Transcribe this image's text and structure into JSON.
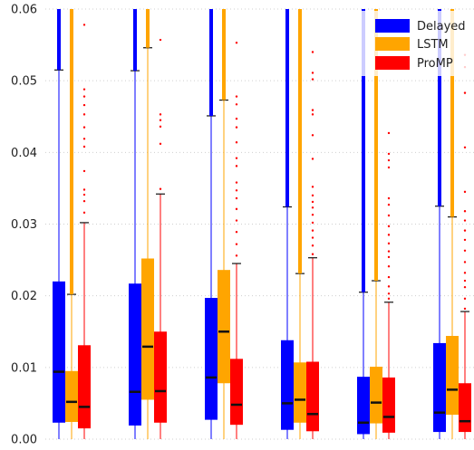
{
  "chart_data": {
    "type": "boxplot",
    "title": "",
    "xlabel": "",
    "ylabel": "",
    "ylim": [
      0,
      0.06
    ],
    "yticks": [
      "0.00",
      "0.01",
      "0.02",
      "0.03",
      "0.04",
      "0.05",
      "0.06"
    ],
    "grid": "horizontal dotted",
    "legend_position": "top-right",
    "groups": 6,
    "series": [
      {
        "name": "Delayed",
        "color": "#0000ff",
        "boxes": [
          {
            "whislo": 0.0,
            "q1": 0.0023,
            "med": 0.0094,
            "q3": 0.022,
            "whishi": 0.0515,
            "top_whisker_clipped": true
          },
          {
            "whislo": 0.0,
            "q1": 0.0019,
            "med": 0.0066,
            "q3": 0.0217,
            "whishi": 0.0514,
            "top_whisker_clipped": true
          },
          {
            "whislo": 0.0,
            "q1": 0.0027,
            "med": 0.0086,
            "q3": 0.0197,
            "whishi": 0.0451,
            "top_whisker_clipped": true
          },
          {
            "whislo": 0.0,
            "q1": 0.0013,
            "med": 0.005,
            "q3": 0.0138,
            "whishi": 0.0324,
            "top_whisker_clipped": true
          },
          {
            "whislo": 0.0,
            "q1": 0.0007,
            "med": 0.0023,
            "q3": 0.0087,
            "whishi": 0.0205,
            "top_whisker_clipped": true
          },
          {
            "whislo": 0.0,
            "q1": 0.001,
            "med": 0.0037,
            "q3": 0.0134,
            "whishi": 0.0325,
            "top_whisker_clipped": true
          }
        ]
      },
      {
        "name": "LSTM",
        "color": "#ffa500",
        "boxes": [
          {
            "whislo": 0.0,
            "q1": 0.0024,
            "med": 0.0052,
            "q3": 0.0095,
            "whishi": 0.0202,
            "top_whisker_clipped": true
          },
          {
            "whislo": 0.0,
            "q1": 0.0055,
            "med": 0.0129,
            "q3": 0.0252,
            "whishi": 0.0546,
            "top_whisker_clipped": true
          },
          {
            "whislo": 0.0,
            "q1": 0.0078,
            "med": 0.015,
            "q3": 0.0236,
            "whishi": 0.0473,
            "top_whisker_clipped": true
          },
          {
            "whislo": 0.0,
            "q1": 0.0023,
            "med": 0.0055,
            "q3": 0.0107,
            "whishi": 0.0231,
            "top_whisker_clipped": true
          },
          {
            "whislo": 0.0,
            "q1": 0.0022,
            "med": 0.0051,
            "q3": 0.0101,
            "whishi": 0.0221,
            "top_whisker_clipped": true
          },
          {
            "whislo": 0.0,
            "q1": 0.0034,
            "med": 0.0069,
            "q3": 0.0144,
            "whishi": 0.031,
            "top_whisker_clipped": true
          }
        ]
      },
      {
        "name": "ProMP",
        "color": "#ff0000",
        "boxes": [
          {
            "whislo": 0.0,
            "q1": 0.0015,
            "med": 0.0045,
            "q3": 0.0131,
            "whishi": 0.0302,
            "fliers": [
              0.0316,
              0.0332,
              0.0341,
              0.0348,
              0.0374,
              0.0408,
              0.0419,
              0.0435,
              0.0453,
              0.0466,
              0.0478,
              0.0488,
              0.0578
            ]
          },
          {
            "whislo": 0.0,
            "q1": 0.0023,
            "med": 0.0067,
            "q3": 0.015,
            "whishi": 0.0342,
            "fliers": [
              0.0349,
              0.0412,
              0.0436,
              0.0445,
              0.0453,
              0.0557
            ]
          },
          {
            "whislo": 0.0,
            "q1": 0.002,
            "med": 0.0048,
            "q3": 0.0112,
            "whishi": 0.0245,
            "fliers": [
              0.0256,
              0.0272,
              0.0289,
              0.0305,
              0.0321,
              0.0336,
              0.0347,
              0.0358,
              0.0381,
              0.0392,
              0.0414,
              0.0435,
              0.0447,
              0.0467,
              0.0478,
              0.0553
            ]
          },
          {
            "whislo": 0.0,
            "q1": 0.0011,
            "med": 0.0035,
            "q3": 0.0108,
            "whishi": 0.0253,
            "fliers": [
              0.0258,
              0.027,
              0.0281,
              0.0291,
              0.0302,
              0.0313,
              0.0323,
              0.0331,
              0.034,
              0.0352,
              0.0391,
              0.0424,
              0.0453,
              0.0459,
              0.0502,
              0.0511,
              0.054
            ]
          },
          {
            "whislo": 0.0,
            "q1": 0.0009,
            "med": 0.0031,
            "q3": 0.0086,
            "whishi": 0.0191,
            "fliers": [
              0.0196,
              0.0203,
              0.0213,
              0.0226,
              0.0241,
              0.0254,
              0.0262,
              0.0273,
              0.0285,
              0.0297,
              0.0312,
              0.0327,
              0.0336,
              0.0379,
              0.0389,
              0.0398,
              0.0427
            ]
          },
          {
            "whislo": 0.0,
            "q1": 0.001,
            "med": 0.0025,
            "q3": 0.0078,
            "whishi": 0.0178,
            "fliers": [
              0.0182,
              0.0196,
              0.0212,
              0.0221,
              0.0232,
              0.0247,
              0.0263,
              0.0278,
              0.0291,
              0.0305,
              0.0318,
              0.0345,
              0.0407,
              0.0483,
              0.0519,
              0.0536
            ]
          }
        ]
      }
    ]
  }
}
